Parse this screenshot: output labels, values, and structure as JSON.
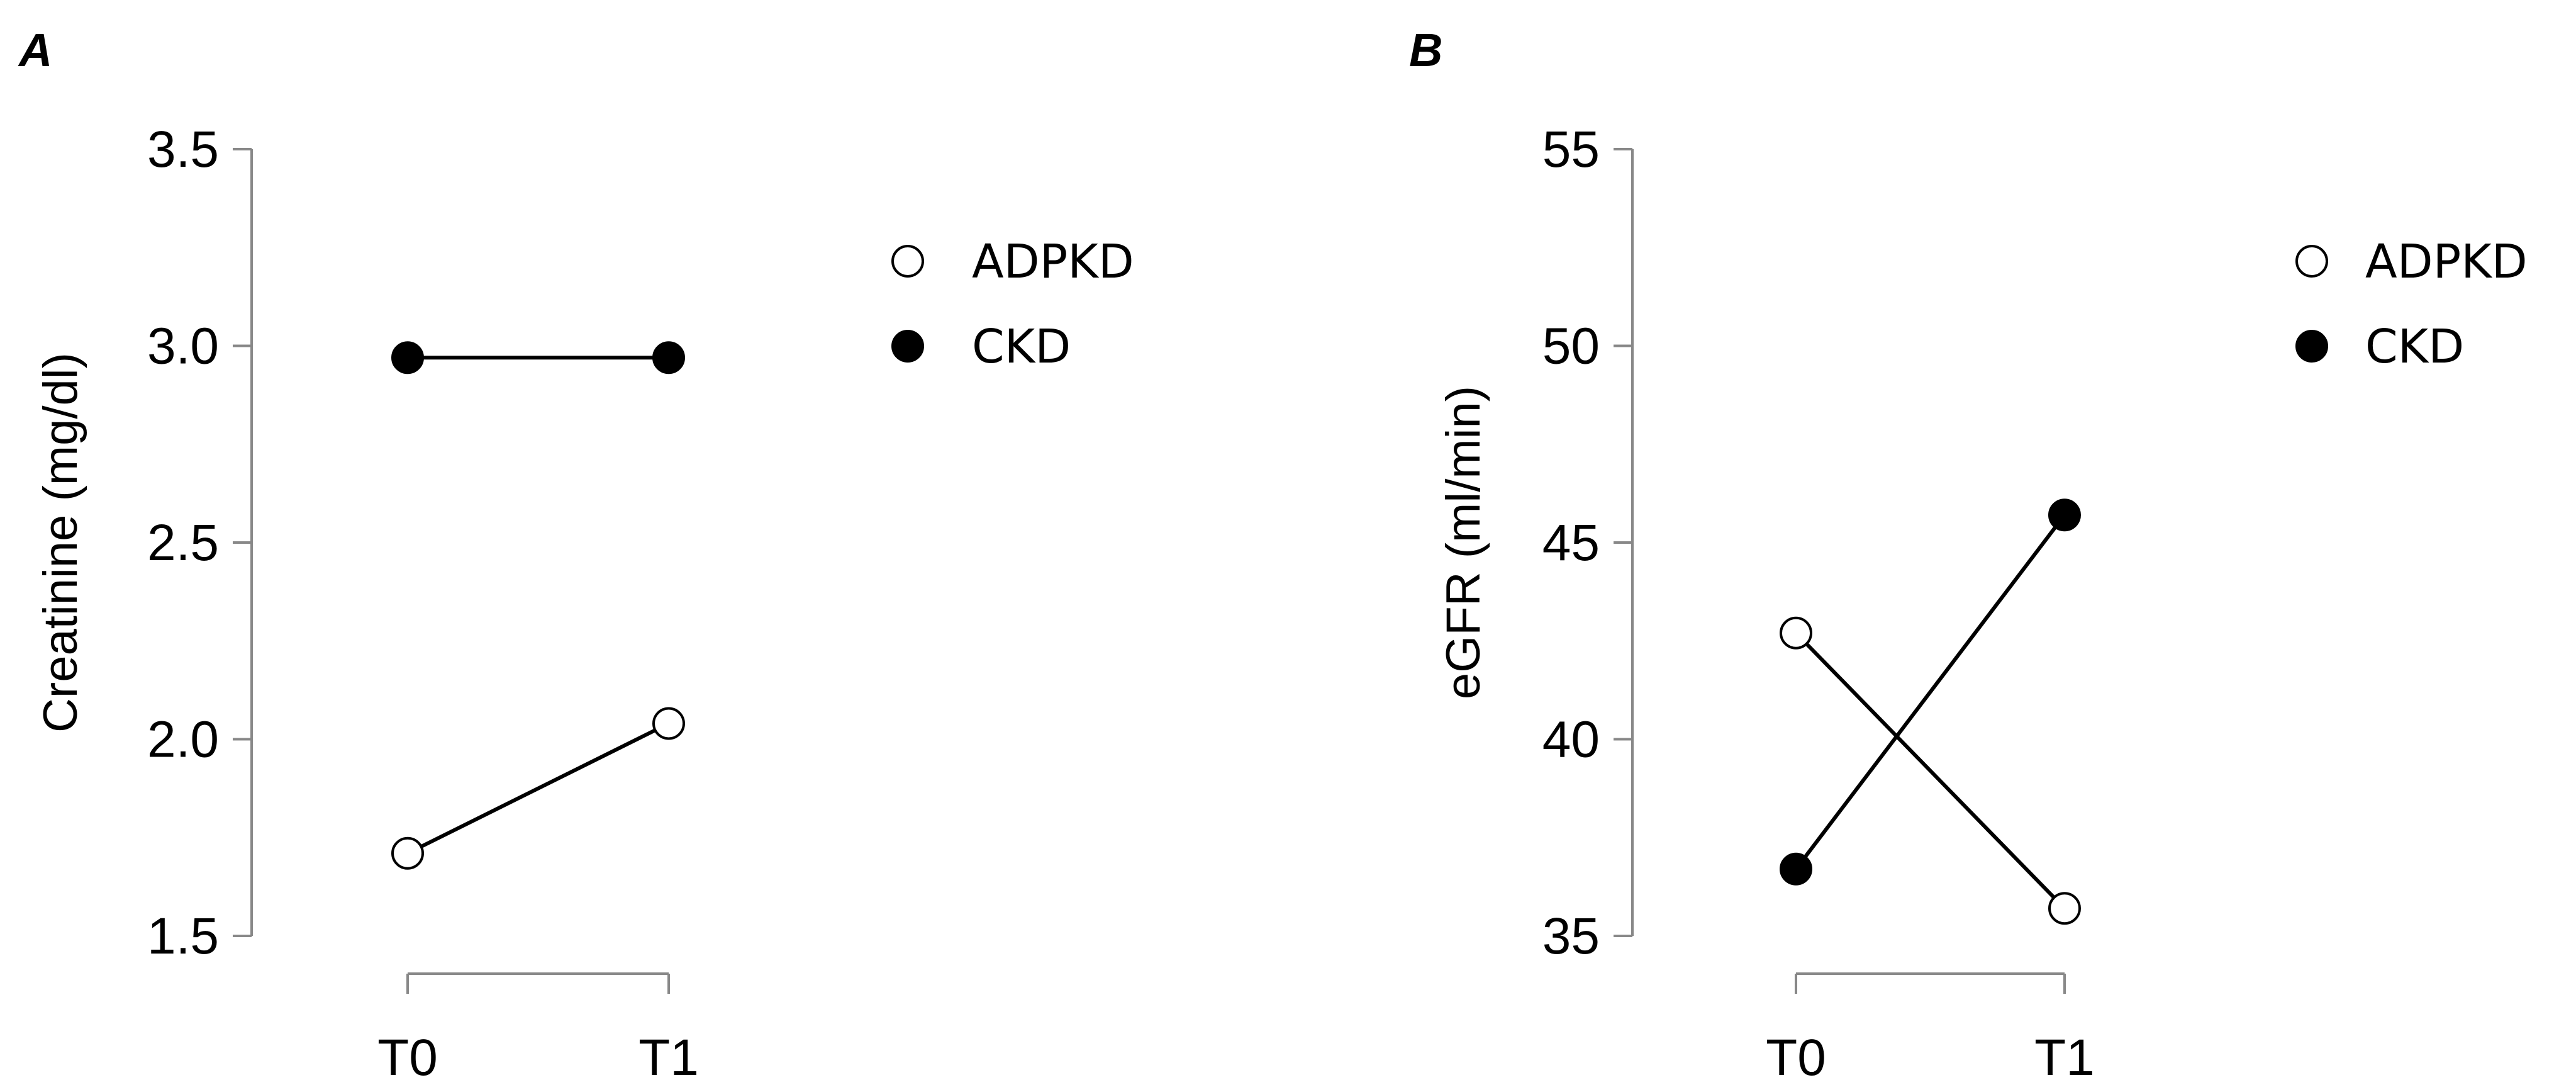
{
  "chart_data": [
    {
      "panel_label": "A",
      "type": "line",
      "categories": [
        "T0",
        "T1"
      ],
      "ylabel": "Creatinine (mg/dl)",
      "ylim": [
        1.5,
        3.5
      ],
      "yticks": [
        "1.5",
        "2.0",
        "2.5",
        "3.0",
        "3.5"
      ],
      "legend_position": "top-right",
      "series": [
        {
          "name": "ADPKD",
          "values": [
            1.71,
            2.04
          ],
          "marker": "open-circle",
          "color": "#000000"
        },
        {
          "name": "CKD",
          "values": [
            2.97,
            2.97
          ],
          "marker": "filled-circle",
          "color": "#000000"
        }
      ]
    },
    {
      "panel_label": "B",
      "type": "line",
      "categories": [
        "T0",
        "T1"
      ],
      "ylabel": "eGFR (ml/min)",
      "ylim": [
        35,
        55
      ],
      "yticks": [
        "35",
        "40",
        "45",
        "50",
        "55"
      ],
      "legend_position": "top-right",
      "series": [
        {
          "name": "ADPKD",
          "values": [
            42.7,
            35.7
          ],
          "marker": "open-circle",
          "color": "#000000"
        },
        {
          "name": "CKD",
          "values": [
            36.7,
            45.7
          ],
          "marker": "filled-circle",
          "color": "#000000"
        }
      ]
    }
  ]
}
